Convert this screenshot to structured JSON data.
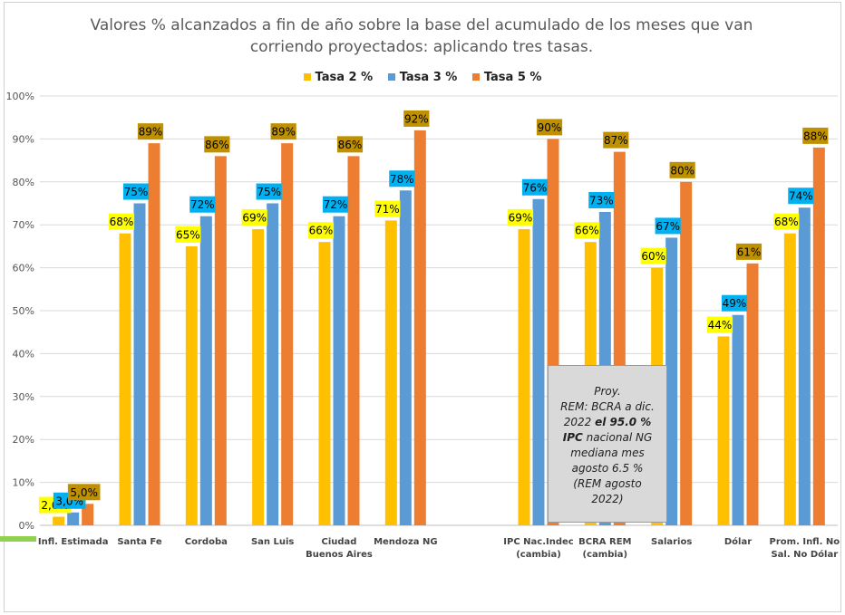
{
  "chart_data": {
    "type": "bar",
    "title_line1": "Valores % alcanzados a fin de año sobre la base del acumulado de los meses que van",
    "title_line2": "corriendo proyectados: aplicando tres tasas.",
    "ylim": [
      0,
      100
    ],
    "yticks": [
      "0%",
      "10%",
      "20%",
      "30%",
      "40%",
      "50%",
      "60%",
      "70%",
      "80%",
      "90%",
      "100%"
    ],
    "grid": true,
    "legend_position": "top",
    "categories": [
      [
        "Infl. Estimada"
      ],
      [
        "Santa Fe"
      ],
      [
        "Cordoba"
      ],
      [
        "San Luis"
      ],
      [
        "Ciudad",
        "Buenos Aires"
      ],
      [
        "Mendoza NG"
      ],
      [
        ""
      ],
      [
        "IPC Nac.Indec",
        "(cambia)"
      ],
      [
        "BCRA REM",
        "(cambia)"
      ],
      [
        "Salarios"
      ],
      [
        "Dólar"
      ],
      [
        "Prom. Infl. No",
        "Sal. No Dólar"
      ]
    ],
    "series": [
      {
        "name": "Tasa 2 %",
        "color": "#ffc000",
        "label_bg": "#ffff00",
        "values": [
          2.0,
          68,
          65,
          69,
          66,
          71,
          null,
          69,
          66,
          60,
          44,
          68
        ],
        "labels": [
          "2,0%",
          "68%",
          "65%",
          "69%",
          "66%",
          "71%",
          "",
          "69%",
          "66%",
          "60%",
          "44%",
          "68%"
        ]
      },
      {
        "name": "Tasa 3 %",
        "color": "#5b9bd5",
        "label_bg": "#00b0f0",
        "values": [
          3.0,
          75,
          72,
          75,
          72,
          78,
          null,
          76,
          73,
          67,
          49,
          74
        ],
        "labels": [
          "3,0%",
          "75%",
          "72%",
          "75%",
          "72%",
          "78%",
          "",
          "76%",
          "73%",
          "67%",
          "49%",
          "74%"
        ]
      },
      {
        "name": "Tasa 5 %",
        "color": "#ed7d31",
        "label_bg": "#bf9000",
        "values": [
          5.0,
          89,
          86,
          89,
          86,
          92,
          null,
          90,
          87,
          80,
          61,
          88
        ],
        "labels": [
          "5,0%",
          "89%",
          "86%",
          "89%",
          "86%",
          "92%",
          "",
          "90%",
          "87%",
          "80%",
          "61%",
          "88%"
        ]
      }
    ],
    "annotation": {
      "line1": "Proy.",
      "line2": "REM: BCRA a dic.",
      "line3a": "2022",
      "line3b": "el  95.0 %",
      "line4a": "IPC",
      "line4b": " nacional NG",
      "line5": "mediana mes",
      "line6": "agosto 6.5 %",
      "line7": "(REM agosto",
      "line8": "2022)"
    }
  }
}
